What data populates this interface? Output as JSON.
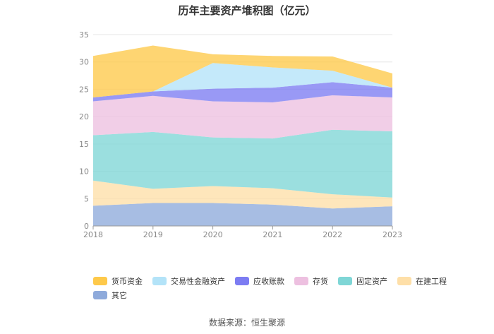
{
  "chart_data": {
    "type": "area",
    "stacked": true,
    "title": "历年主要资产堆积图（亿元）",
    "x": [
      "2018",
      "2019",
      "2020",
      "2021",
      "2022",
      "2023"
    ],
    "ylim": [
      0,
      35
    ],
    "yticks": [
      0,
      5,
      10,
      15,
      20,
      25,
      30,
      35
    ],
    "grid": true,
    "legend_position": "bottom",
    "series": [
      {
        "name": "其它",
        "color": "#8eaadb",
        "values": [
          3.7,
          4.2,
          4.2,
          3.9,
          3.2,
          3.6
        ]
      },
      {
        "name": "在建工程",
        "color": "#fedfa8",
        "values": [
          4.6,
          2.6,
          3.1,
          3.0,
          2.6,
          1.6
        ]
      },
      {
        "name": "固定资产",
        "color": "#7fd6d6",
        "values": [
          8.3,
          10.4,
          8.9,
          9.1,
          11.8,
          12.1
        ]
      },
      {
        "name": "存货",
        "color": "#edc0e0",
        "values": [
          6.2,
          6.6,
          6.6,
          6.6,
          6.3,
          6.2
        ]
      },
      {
        "name": "应收账款",
        "color": "#7c7cf2",
        "values": [
          0.7,
          0.8,
          2.3,
          2.7,
          2.4,
          1.8
        ]
      },
      {
        "name": "交易性金融资产",
        "color": "#b3e3f8",
        "values": [
          0.0,
          0.0,
          4.7,
          3.7,
          2.1,
          0.0
        ]
      },
      {
        "name": "货币资金",
        "color": "#fec94a",
        "values": [
          7.6,
          8.4,
          1.6,
          2.1,
          2.6,
          2.6
        ]
      }
    ]
  },
  "legend": {
    "order": [
      "货币资金",
      "交易性金融资产",
      "应收账款",
      "存货",
      "固定资产",
      "在建工程",
      "其它"
    ]
  },
  "source_text": "数据来源：恒生聚源"
}
